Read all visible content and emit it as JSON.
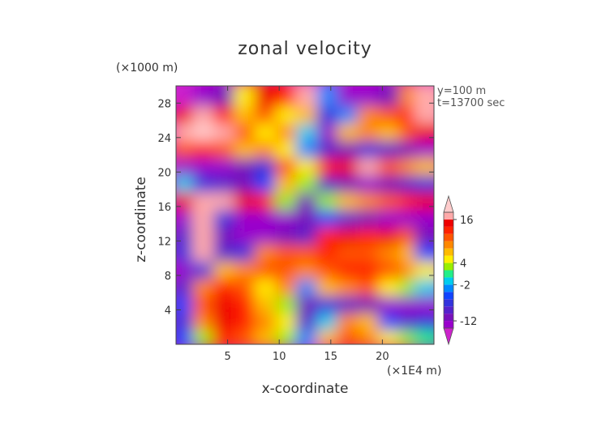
{
  "chart_data": {
    "type": "heatmap",
    "title": "zonal velocity",
    "xlabel": "x-coordinate",
    "ylabel": "z-coordinate",
    "x_unit": "(×1E4 m)",
    "y_unit": "(×1000 m)",
    "xlim": [
      0,
      25
    ],
    "ylim": [
      0,
      30
    ],
    "x_ticks": [
      5,
      10,
      15,
      20
    ],
    "y_ticks": [
      4,
      8,
      12,
      16,
      20,
      24,
      28
    ],
    "annotations": [
      "y=100 m",
      "t=13700 sec"
    ],
    "colorbar": {
      "tick_labels": [
        "16",
        "4",
        "-2",
        "-12"
      ],
      "tick_values": [
        16,
        4,
        -2,
        -12
      ],
      "levels": [
        -20,
        -16,
        -12,
        -10,
        -8,
        -6,
        -4,
        -2,
        0,
        2,
        4,
        6,
        8,
        10,
        12,
        14,
        16,
        20
      ],
      "colors": [
        "#cc22cc",
        "#9900cc",
        "#7711bb",
        "#5522cc",
        "#3333dd",
        "#1144ff",
        "#0088ff",
        "#00ccee",
        "#22ee88",
        "#99ee00",
        "#ffee00",
        "#ffbb00",
        "#ff8800",
        "#ff5500",
        "#ff2200",
        "#ee0000",
        "#ffaaaa",
        "#ffcccc"
      ],
      "extend": "both"
    },
    "x": [
      1,
      3,
      5,
      7,
      9,
      11,
      13,
      15,
      17,
      19,
      21,
      23,
      24.5
    ],
    "z": [
      1,
      3,
      5,
      7,
      9,
      11,
      13,
      15,
      17,
      19,
      21,
      23,
      25,
      27,
      29
    ],
    "values": [
      [
        -6,
        2,
        12,
        10,
        6,
        2,
        -4,
        6,
        10,
        8,
        4,
        2,
        0
      ],
      [
        -8,
        8,
        14,
        12,
        8,
        4,
        -10,
        -2,
        8,
        6,
        -6,
        -10,
        -8
      ],
      [
        -6,
        10,
        14,
        12,
        6,
        2,
        -12,
        -8,
        -10,
        -12,
        -14,
        -16,
        -14
      ],
      [
        -10,
        8,
        12,
        10,
        4,
        8,
        -4,
        6,
        8,
        10,
        4,
        2,
        -2
      ],
      [
        -14,
        -8,
        6,
        8,
        10,
        10,
        8,
        10,
        12,
        12,
        10,
        8,
        4
      ],
      [
        -8,
        16,
        -10,
        -8,
        8,
        10,
        10,
        12,
        10,
        10,
        8,
        6,
        -6
      ],
      [
        -10,
        16,
        -12,
        -14,
        -16,
        -12,
        -10,
        12,
        14,
        12,
        14,
        10,
        -12
      ],
      [
        -14,
        18,
        -8,
        -16,
        -16,
        -14,
        -12,
        -6,
        -10,
        -12,
        -14,
        -16,
        -14
      ],
      [
        14,
        18,
        16,
        14,
        12,
        2,
        -12,
        2,
        6,
        8,
        10,
        12,
        14
      ],
      [
        -2,
        -8,
        -10,
        -12,
        -6,
        6,
        2,
        -10,
        -12,
        -14,
        -12,
        -10,
        -8
      ],
      [
        -16,
        -14,
        -16,
        -12,
        -8,
        10,
        4,
        12,
        14,
        16,
        10,
        8,
        6
      ],
      [
        10,
        12,
        10,
        6,
        8,
        4,
        -4,
        -10,
        -12,
        -8,
        -10,
        -12,
        -14
      ],
      [
        18,
        20,
        16,
        10,
        4,
        8,
        -2,
        -14,
        6,
        8,
        6,
        10,
        14
      ],
      [
        14,
        18,
        12,
        6,
        10,
        4,
        6,
        -8,
        -4,
        8,
        10,
        12,
        16
      ],
      [
        -18,
        -16,
        -12,
        4,
        14,
        12,
        16,
        -4,
        -14,
        -16,
        -12,
        8,
        18
      ]
    ]
  }
}
